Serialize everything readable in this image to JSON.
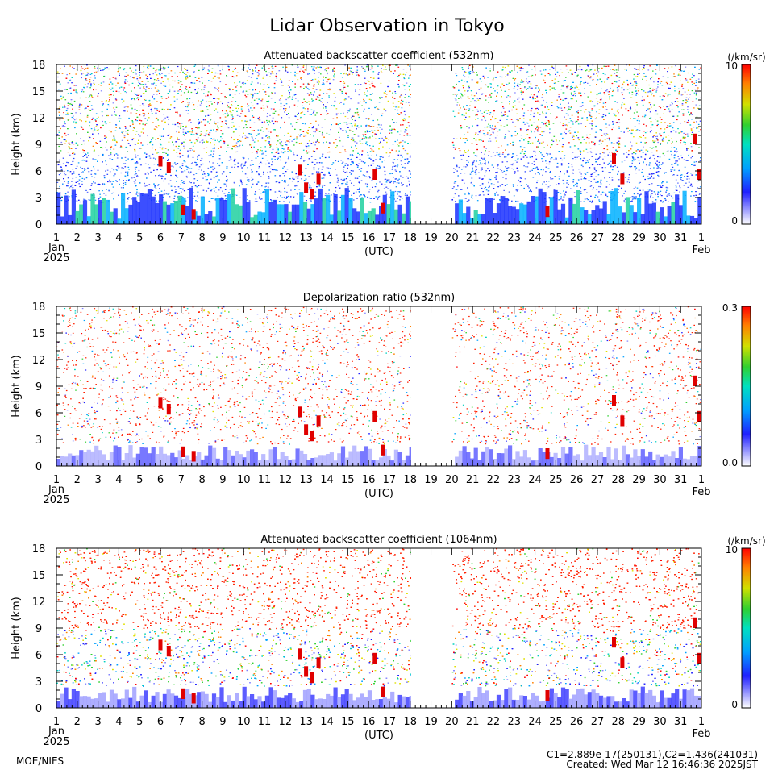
{
  "figure_title": "Lidar Observation in Tokyo",
  "footer": {
    "left": "MOE/NIES",
    "calib": "C1=2.889e-17(250131),C2=1.436(241031)",
    "created": "Created: Wed Mar 12 16:46:36 2025JST"
  },
  "chart_data": [
    {
      "type": "heatmap",
      "title": "Attenuated backscatter coefficient (532nm)",
      "ylabel": "Height (km)",
      "xlabel": "(UTC)",
      "x_ticks": [
        "1",
        "2",
        "3",
        "4",
        "5",
        "6",
        "7",
        "8",
        "9",
        "10",
        "11",
        "12",
        "13",
        "14",
        "15",
        "16",
        "17",
        "18",
        "19",
        "20",
        "21",
        "22",
        "23",
        "24",
        "25",
        "26",
        "27",
        "28",
        "29",
        "30",
        "31",
        "1"
      ],
      "x_start_label": "Jan",
      "x_year_label": "2025",
      "x_end_label": "Feb",
      "y_ticks": [
        "0",
        "3",
        "6",
        "9",
        "12",
        "15",
        "18"
      ],
      "ylim": [
        0,
        18
      ],
      "colorbar": {
        "unit": "(/km/sr)",
        "min_label": "0",
        "max_label": "10",
        "colormap": "rainbow"
      },
      "data_gap_days": [
        18.05,
        20.0
      ]
    },
    {
      "type": "heatmap",
      "title": "Depolarization ratio (532nm)",
      "ylabel": "Height (km)",
      "xlabel": "(UTC)",
      "x_ticks": [
        "1",
        "2",
        "3",
        "4",
        "5",
        "6",
        "7",
        "8",
        "9",
        "10",
        "11",
        "12",
        "13",
        "14",
        "15",
        "16",
        "17",
        "18",
        "19",
        "20",
        "21",
        "22",
        "23",
        "24",
        "25",
        "26",
        "27",
        "28",
        "29",
        "30",
        "31",
        "1"
      ],
      "x_start_label": "Jan",
      "x_year_label": "2025",
      "x_end_label": "Feb",
      "y_ticks": [
        "0",
        "3",
        "6",
        "9",
        "12",
        "15",
        "18"
      ],
      "ylim": [
        0,
        18
      ],
      "colorbar": {
        "unit": "",
        "min_label": "0.0",
        "max_label": "0.3",
        "colormap": "rainbow"
      },
      "data_gap_days": [
        18.05,
        20.0
      ]
    },
    {
      "type": "heatmap",
      "title": "Attenuated backscatter coefficient (1064nm)",
      "ylabel": "Height (km)",
      "xlabel": "(UTC)",
      "x_ticks": [
        "1",
        "2",
        "3",
        "4",
        "5",
        "6",
        "7",
        "8",
        "9",
        "10",
        "11",
        "12",
        "13",
        "14",
        "15",
        "16",
        "17",
        "18",
        "19",
        "20",
        "21",
        "22",
        "23",
        "24",
        "25",
        "26",
        "27",
        "28",
        "29",
        "30",
        "31",
        "1"
      ],
      "x_start_label": "Jan",
      "x_year_label": "2025",
      "x_end_label": "Feb",
      "y_ticks": [
        "0",
        "3",
        "6",
        "9",
        "12",
        "15",
        "18"
      ],
      "ylim": [
        0,
        18
      ],
      "colorbar": {
        "unit": "(/km/sr)",
        "min_label": "0",
        "max_label": "10",
        "colormap": "rainbow"
      },
      "data_gap_days": [
        18.05,
        20.0
      ]
    }
  ]
}
